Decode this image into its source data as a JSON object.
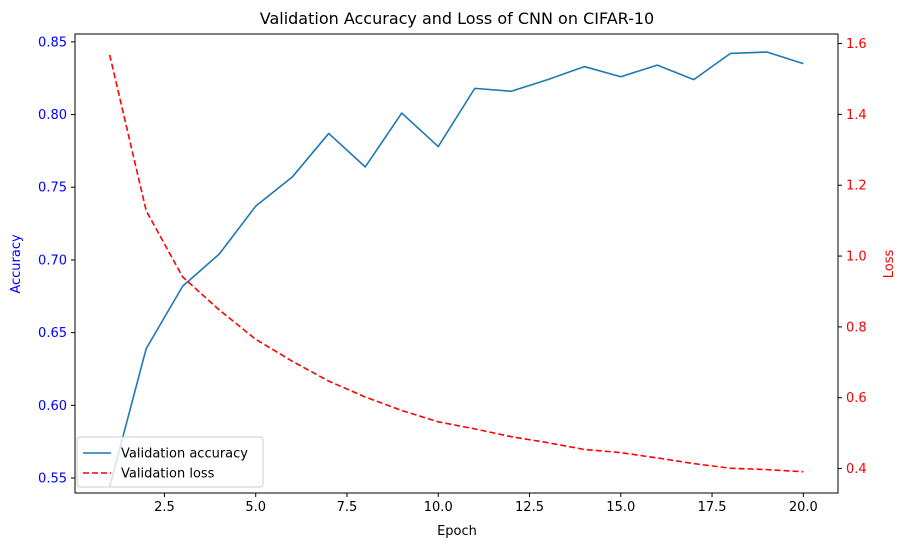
{
  "chart_data": {
    "type": "line",
    "title": "Validation Accuracy and Loss of CNN on CIFAR-10",
    "xlabel": "Epoch",
    "ylabel_left": "Accuracy",
    "ylabel_right": "Loss",
    "xlim": [
      0.05,
      20.95
    ],
    "ylim_left": [
      0.5397,
      0.8554
    ],
    "ylim_right": [
      0.331,
      1.627
    ],
    "x_ticks": [
      2.5,
      5.0,
      7.5,
      10.0,
      12.5,
      15.0,
      17.5,
      20.0
    ],
    "x_tick_labels": [
      "2.5",
      "5.0",
      "7.5",
      "10.0",
      "12.5",
      "15.0",
      "17.5",
      "20.0"
    ],
    "y_left_ticks": [
      0.55,
      0.6,
      0.65,
      0.7,
      0.75,
      0.8,
      0.85
    ],
    "y_left_tick_labels": [
      "0.55",
      "0.60",
      "0.65",
      "0.70",
      "0.75",
      "0.80",
      "0.85"
    ],
    "y_right_ticks": [
      0.4,
      0.6,
      0.8,
      1.0,
      1.2,
      1.4,
      1.6
    ],
    "y_right_tick_labels": [
      "0.4",
      "0.6",
      "0.8",
      "1.0",
      "1.2",
      "1.4",
      "1.6"
    ],
    "grid": false,
    "legend_position": "lower-left",
    "x": [
      1,
      2,
      3,
      4,
      5,
      6,
      7,
      8,
      9,
      10,
      11,
      12,
      13,
      14,
      15,
      16,
      17,
      18,
      19,
      20
    ],
    "series": [
      {
        "name": "Validation accuracy",
        "axis": "left",
        "color": "#1f77b4",
        "style": "solid",
        "values": [
          0.544,
          0.639,
          0.682,
          0.704,
          0.737,
          0.757,
          0.787,
          0.764,
          0.801,
          0.778,
          0.818,
          0.816,
          0.824,
          0.833,
          0.826,
          0.834,
          0.824,
          0.842,
          0.843,
          0.835
        ]
      },
      {
        "name": "Validation loss",
        "axis": "right",
        "color": "#ff0000",
        "style": "dashed",
        "values": [
          1.568,
          1.128,
          0.941,
          0.848,
          0.765,
          0.703,
          0.647,
          0.602,
          0.564,
          0.532,
          0.512,
          0.49,
          0.473,
          0.454,
          0.445,
          0.43,
          0.414,
          0.401,
          0.397,
          0.391
        ]
      }
    ],
    "colors": {
      "left_axis": "#0000ff",
      "right_axis": "#ff0000",
      "frame": "#000000"
    }
  }
}
